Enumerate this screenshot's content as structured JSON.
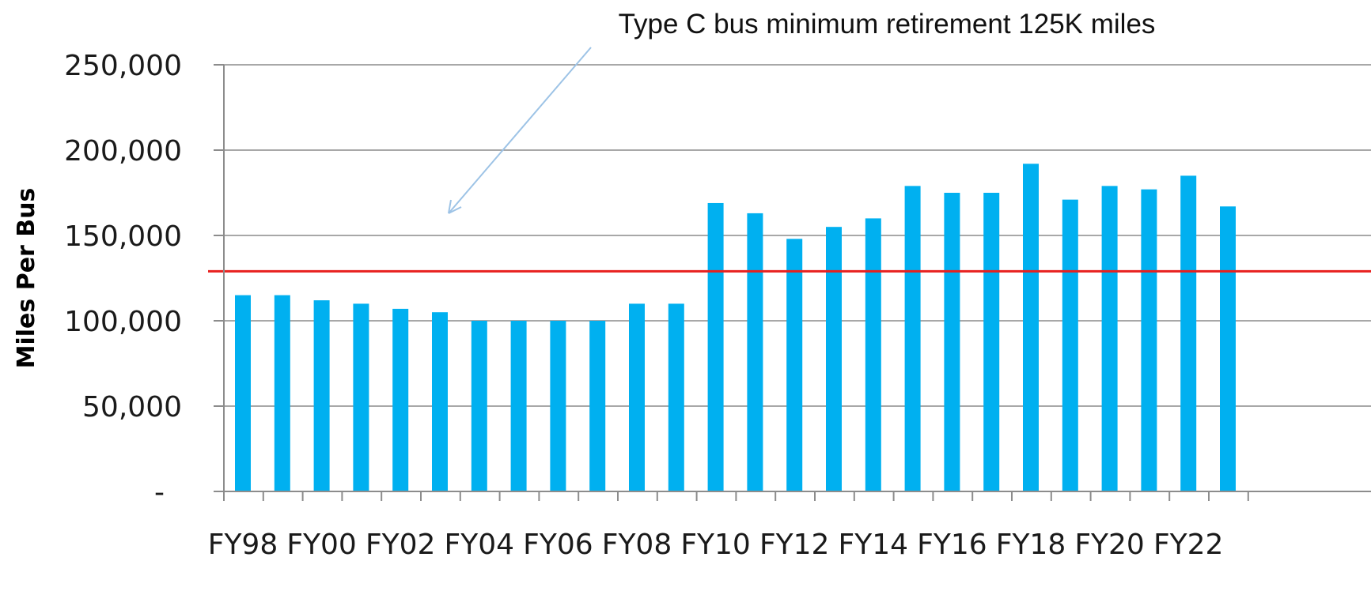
{
  "chart_data": {
    "type": "bar",
    "title": "",
    "xlabel": "",
    "ylabel": "Miles Per Bus",
    "ylim": [
      0,
      250000
    ],
    "y_ticks": [
      0,
      50000,
      100000,
      150000,
      200000,
      250000
    ],
    "y_tick_labels": [
      "-",
      "50,000",
      "100,000",
      "150,000",
      "200,000",
      "250,000"
    ],
    "categories": [
      "FY98",
      "FY99",
      "FY00",
      "FY01",
      "FY02",
      "FY03",
      "FY04",
      "FY05",
      "FY06",
      "FY07",
      "FY08",
      "FY09",
      "FY10",
      "FY11",
      "FY12",
      "FY13",
      "FY14",
      "FY15",
      "FY16",
      "FY17",
      "FY18",
      "FY19",
      "FY20",
      "FY21",
      "FY22",
      "FY23"
    ],
    "x_tick_labels": [
      "FY98",
      "FY00",
      "FY02",
      "FY04",
      "FY06",
      "FY08",
      "FY10",
      "FY12",
      "FY14",
      "FY16",
      "FY18",
      "FY20",
      "FY22"
    ],
    "series": [
      {
        "values": [
          115000,
          115000,
          112000,
          110000,
          107000,
          105000,
          100000,
          100000,
          100000,
          100000,
          110000,
          110000,
          169000,
          163000,
          148000,
          155000,
          160000,
          179000,
          175000,
          175000,
          192000,
          171000,
          179000,
          177000,
          185000,
          167000
        ],
        "color": "#00B0F0"
      }
    ],
    "reference_line": {
      "value": 129000,
      "color": "#E8201E"
    },
    "annotation": {
      "text": "Type C bus minimum retirement 125K miles"
    },
    "grid": true,
    "legend": "none",
    "gridline_color": "#8C8C8C"
  }
}
